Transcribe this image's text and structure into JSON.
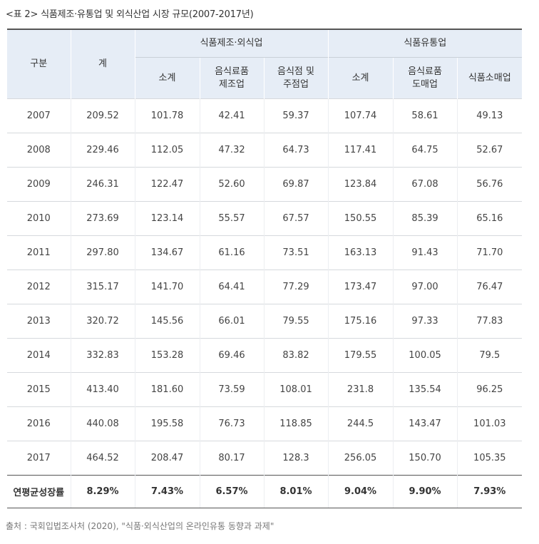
{
  "caption": "<표 2> 식품제조·유통업 및 외식산업 시장 규모(2007-2017년)",
  "header": {
    "col_category": "구분",
    "col_total": "계",
    "group_mfg": "식품제조·외식업",
    "group_dist": "식품유통업",
    "mfg_subtotal": "소계",
    "mfg_food_line1": "음식료품",
    "mfg_food_line2": "제조업",
    "mfg_rest_line1": "음식점 및",
    "mfg_rest_line2": "주점업",
    "dist_subtotal": "소계",
    "dist_whole_line1": "음식료품",
    "dist_whole_line2": "도매업",
    "dist_retail": "식품소매업"
  },
  "rows": [
    {
      "year": "2007",
      "values": [
        "209.52",
        "101.78",
        "42.41",
        "59.37",
        "107.74",
        "58.61",
        "49.13"
      ]
    },
    {
      "year": "2008",
      "values": [
        "229.46",
        "112.05",
        "47.32",
        "64.73",
        "117.41",
        "64.75",
        "52.67"
      ]
    },
    {
      "year": "2009",
      "values": [
        "246.31",
        "122.47",
        "52.60",
        "69.87",
        "123.84",
        "67.08",
        "56.76"
      ]
    },
    {
      "year": "2010",
      "values": [
        "273.69",
        "123.14",
        "55.57",
        "67.57",
        "150.55",
        "85.39",
        "65.16"
      ]
    },
    {
      "year": "2011",
      "values": [
        "297.80",
        "134.67",
        "61.16",
        "73.51",
        "163.13",
        "91.43",
        "71.70"
      ]
    },
    {
      "year": "2012",
      "values": [
        "315.17",
        "141.70",
        "64.41",
        "77.29",
        "173.47",
        "97.00",
        "76.47"
      ]
    },
    {
      "year": "2013",
      "values": [
        "320.72",
        "145.56",
        "66.01",
        "79.55",
        "175.16",
        "97.33",
        "77.83"
      ]
    },
    {
      "year": "2014",
      "values": [
        "332.83",
        "153.28",
        "69.46",
        "83.82",
        "179.55",
        "100.05",
        "79.5"
      ]
    },
    {
      "year": "2015",
      "values": [
        "413.40",
        "181.60",
        "73.59",
        "108.01",
        "231.8",
        "135.54",
        "96.25"
      ]
    },
    {
      "year": "2016",
      "values": [
        "440.08",
        "195.58",
        "76.73",
        "118.85",
        "244.5",
        "143.47",
        "101.03"
      ]
    },
    {
      "year": "2017",
      "values": [
        "464.52",
        "208.47",
        "80.17",
        "128.3",
        "256.05",
        "150.70",
        "105.35"
      ]
    }
  ],
  "growth": {
    "label": "연평균성장률",
    "values": [
      "8.29%",
      "7.43%",
      "6.57%",
      "8.01%",
      "9.04%",
      "9.90%",
      "7.93%"
    ]
  },
  "source": "출처 : 국회입법조사처 (2020), \"식품·외식산업의 온라인유통 동향과 과제\""
}
